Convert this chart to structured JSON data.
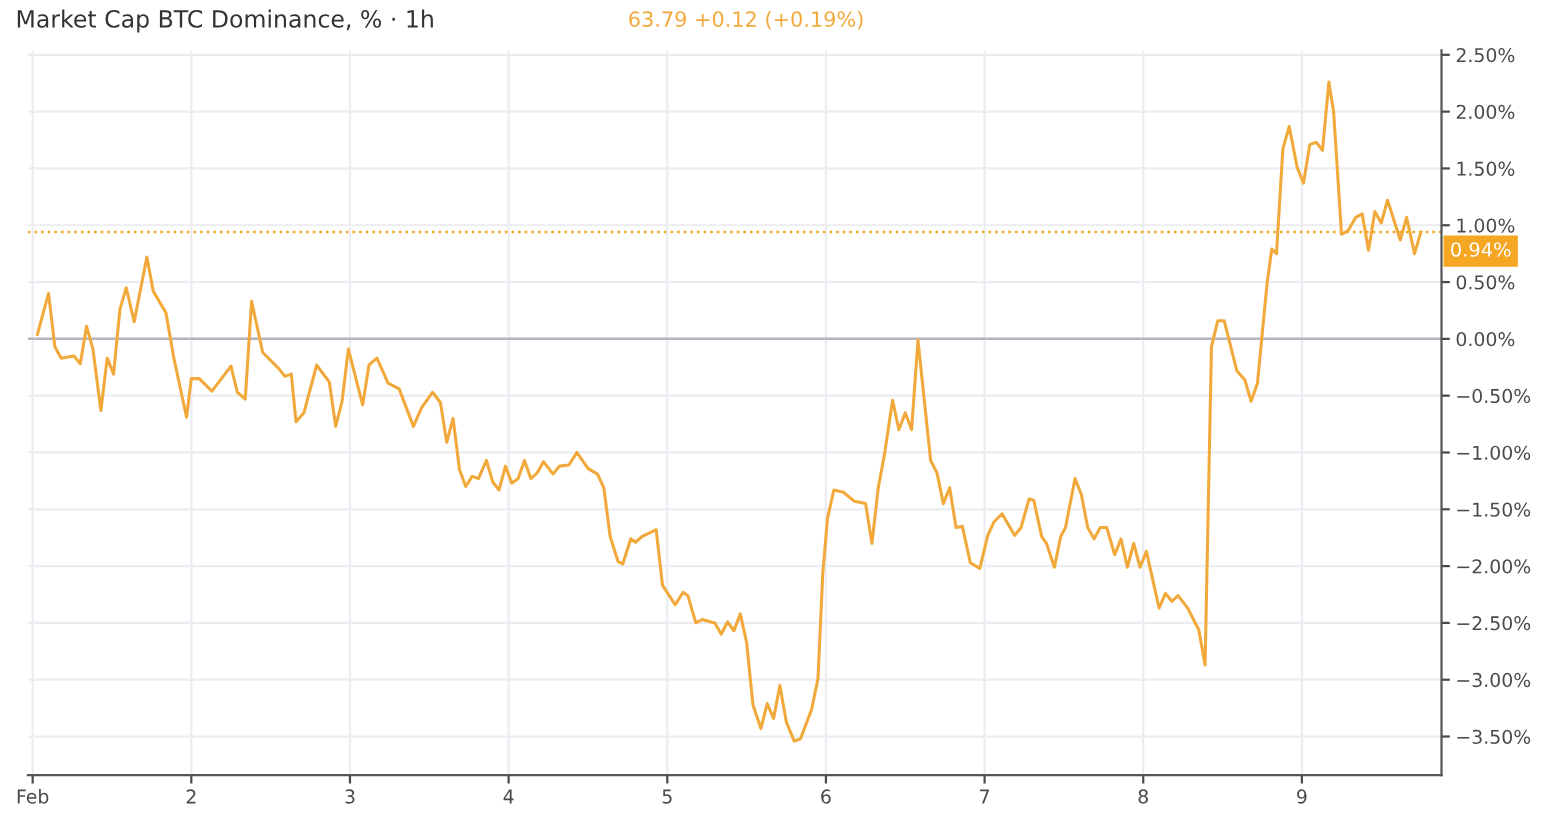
{
  "chart_data": {
    "type": "line",
    "title": "Market Cap BTC Dominance, % · 1h",
    "annotations": [
      "63.79 +0.12 (+0.19%)"
    ],
    "series": [
      {
        "color": "#f2a93b",
        "x": [
          1.03,
          1.1,
          1.14,
          1.18,
          1.26,
          1.3,
          1.34,
          1.38,
          1.43,
          1.47,
          1.51,
          1.55,
          1.59,
          1.64,
          1.72,
          1.76,
          1.84,
          1.89,
          1.97,
          2.0,
          2.05,
          2.13,
          2.19,
          2.25,
          2.29,
          2.34,
          2.38,
          2.45,
          2.55,
          2.59,
          2.63,
          2.66,
          2.71,
          2.79,
          2.87,
          2.91,
          2.95,
          2.99,
          3.08,
          3.12,
          3.17,
          3.24,
          3.31,
          3.4,
          3.45,
          3.52,
          3.57,
          3.61,
          3.65,
          3.69,
          3.73,
          3.77,
          3.81,
          3.86,
          3.9,
          3.94,
          3.98,
          4.02,
          4.06,
          4.1,
          4.14,
          4.18,
          4.22,
          4.28,
          4.32,
          4.38,
          4.43,
          4.5,
          4.56,
          4.6,
          4.64,
          4.69,
          4.72,
          4.77,
          4.8,
          4.84,
          4.93,
          4.97,
          5.05,
          5.1,
          5.13,
          5.18,
          5.22,
          5.3,
          5.34,
          5.38,
          5.42,
          5.46,
          5.5,
          5.54,
          5.59,
          5.63,
          5.67,
          5.71,
          5.75,
          5.8,
          5.84,
          5.91,
          5.95,
          5.98,
          6.01,
          6.05,
          6.11,
          6.18,
          6.25,
          6.29,
          6.33,
          6.37,
          6.42,
          6.46,
          6.5,
          6.54,
          6.58,
          6.66,
          6.7,
          6.74,
          6.78,
          6.82,
          6.86,
          6.91,
          6.97,
          7.02,
          7.06,
          7.11,
          7.19,
          7.23,
          7.28,
          7.31,
          7.36,
          7.39,
          7.44,
          7.48,
          7.51,
          7.57,
          7.61,
          7.65,
          7.69,
          7.73,
          7.77,
          7.82,
          7.86,
          7.9,
          7.94,
          7.98,
          8.02,
          8.1,
          8.14,
          8.18,
          8.22,
          8.28,
          8.35,
          8.39,
          8.43,
          8.47,
          8.51,
          8.59,
          8.64,
          8.68,
          8.72,
          8.78,
          8.81,
          8.84,
          8.88,
          8.92,
          8.97,
          9.01,
          9.05,
          9.09,
          9.13,
          9.17,
          9.2,
          9.25,
          9.29,
          9.34,
          9.38,
          9.42,
          9.46,
          9.5,
          9.54,
          9.62,
          9.66,
          9.71,
          9.75
        ],
        "values": [
          0.04,
          0.4,
          -0.07,
          -0.17,
          -0.15,
          -0.22,
          0.11,
          -0.09,
          -0.63,
          -0.17,
          -0.31,
          0.26,
          0.45,
          0.15,
          0.72,
          0.42,
          0.23,
          -0.17,
          -0.69,
          -0.35,
          -0.35,
          -0.46,
          -0.35,
          -0.24,
          -0.47,
          -0.53,
          0.33,
          -0.12,
          -0.26,
          -0.33,
          -0.31,
          -0.73,
          -0.65,
          -0.23,
          -0.38,
          -0.77,
          -0.55,
          -0.09,
          -0.58,
          -0.23,
          -0.17,
          -0.39,
          -0.44,
          -0.77,
          -0.61,
          -0.47,
          -0.56,
          -0.91,
          -0.7,
          -1.15,
          -1.3,
          -1.21,
          -1.23,
          -1.07,
          -1.26,
          -1.33,
          -1.12,
          -1.27,
          -1.23,
          -1.07,
          -1.23,
          -1.18,
          -1.08,
          -1.19,
          -1.12,
          -1.11,
          -1.0,
          -1.14,
          -1.19,
          -1.31,
          -1.74,
          -1.96,
          -1.98,
          -1.76,
          -1.79,
          -1.74,
          -1.68,
          -2.17,
          -2.34,
          -2.23,
          -2.26,
          -2.5,
          -2.47,
          -2.5,
          -2.6,
          -2.49,
          -2.57,
          -2.42,
          -2.67,
          -3.22,
          -3.43,
          -3.21,
          -3.34,
          -3.05,
          -3.37,
          -3.54,
          -3.52,
          -3.26,
          -2.99,
          -2.07,
          -1.58,
          -1.33,
          -1.35,
          -1.43,
          -1.45,
          -1.8,
          -1.31,
          -1.01,
          -0.54,
          -0.8,
          -0.65,
          -0.8,
          -0.01,
          -1.07,
          -1.18,
          -1.45,
          -1.31,
          -1.66,
          -1.65,
          -1.97,
          -2.02,
          -1.73,
          -1.61,
          -1.54,
          -1.73,
          -1.66,
          -1.41,
          -1.42,
          -1.74,
          -1.8,
          -2.01,
          -1.74,
          -1.66,
          -1.23,
          -1.37,
          -1.66,
          -1.76,
          -1.66,
          -1.66,
          -1.9,
          -1.76,
          -2.01,
          -1.8,
          -2.01,
          -1.87,
          -2.37,
          -2.24,
          -2.31,
          -2.26,
          -2.37,
          -2.56,
          -2.87,
          -0.07,
          0.16,
          0.16,
          -0.28,
          -0.36,
          -0.55,
          -0.39,
          0.48,
          0.79,
          0.75,
          1.67,
          1.87,
          1.51,
          1.37,
          1.71,
          1.73,
          1.66,
          2.26,
          2.0,
          0.92,
          0.95,
          1.07,
          1.1,
          0.78,
          1.12,
          1.02,
          1.22,
          0.87,
          1.07,
          0.75,
          0.94
        ]
      }
    ],
    "xlim": [
      0.97,
      9.88
    ],
    "ylim": [
      -3.84,
      2.54
    ],
    "xticks": [
      {
        "value": 1,
        "label": "Feb"
      },
      2,
      3,
      4,
      5,
      6,
      7,
      8,
      9
    ],
    "yticks": [
      {
        "value": -3.5,
        "label": "−3.50%"
      },
      {
        "value": -3.0,
        "label": "−3.00%"
      },
      {
        "value": -2.5,
        "label": "−2.50%"
      },
      {
        "value": -2.0,
        "label": "−2.00%"
      },
      {
        "value": -1.5,
        "label": "−1.50%"
      },
      {
        "value": -1.0,
        "label": "−1.00%"
      },
      {
        "value": -0.5,
        "label": "−0.50%"
      },
      {
        "value": 0.0,
        "label": "0.00%"
      },
      {
        "value": 0.5,
        "label": "0.50%"
      },
      {
        "value": 1.0,
        "label": "1.00%"
      },
      {
        "value": 1.5,
        "label": "1.50%"
      },
      {
        "value": 2.0,
        "label": "2.00%"
      },
      {
        "value": 2.5,
        "label": "2.50%"
      }
    ],
    "grid": true,
    "ref_lines": [
      {
        "axis": "y",
        "value": 0,
        "color": "#b2b5be",
        "line_style": "solid"
      },
      {
        "axis": "y",
        "value": 0.94,
        "label": "0.94%",
        "color": "#f5a623",
        "line_style": "dotted"
      }
    ]
  }
}
